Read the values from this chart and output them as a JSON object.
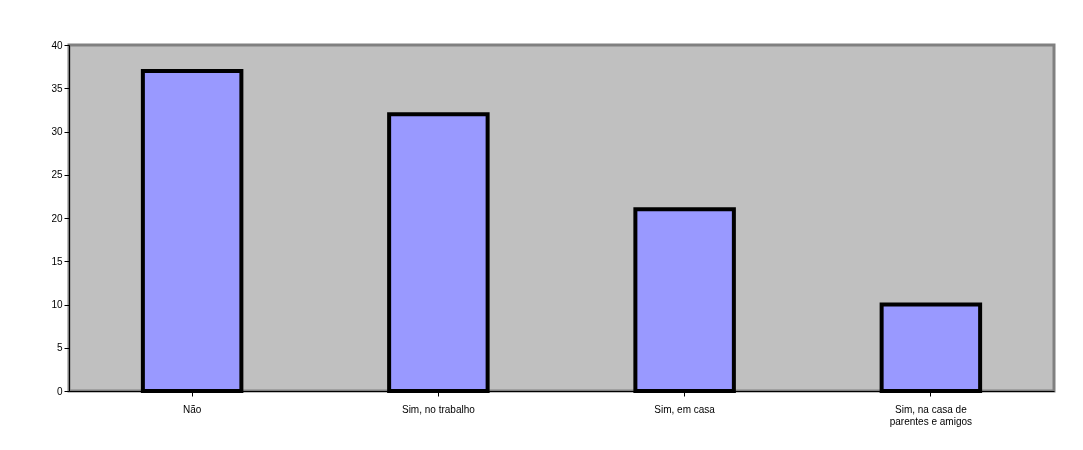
{
  "chart_data": {
    "type": "bar",
    "categories": [
      "Não",
      "Sim, no trabalho",
      "Sim, em casa",
      "Sim, na casa de\nparentes e amigos"
    ],
    "values": [
      37,
      32,
      21,
      10
    ],
    "color": "#9999ff",
    "ylim": [
      0,
      40
    ],
    "yticks": [
      0,
      5,
      10,
      15,
      20,
      25,
      30,
      35,
      40
    ],
    "grid": false
  }
}
